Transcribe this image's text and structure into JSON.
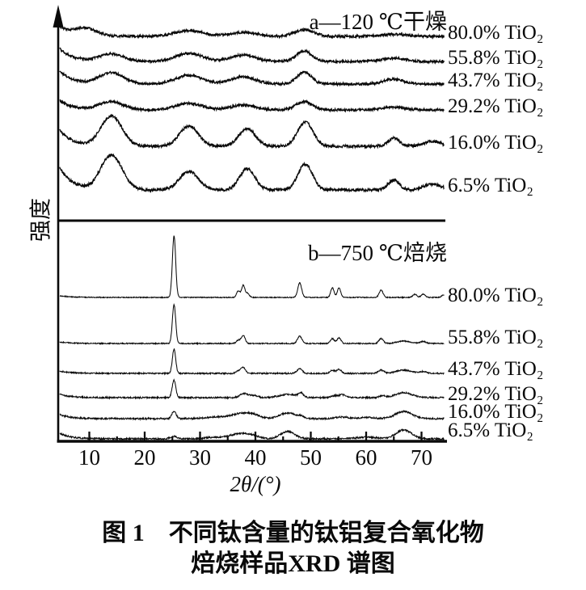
{
  "figure": {
    "caption_line1": "图 1　不同钛含量的钛铝复合氧化物",
    "caption_line2": "焙烧样品XRD 谱图"
  },
  "chart_data": {
    "type": "line",
    "title": "不同钛含量的钛铝复合氧化物焙烧样品XRD谱图",
    "xlabel": "2θ/(°)",
    "ylabel": "强度",
    "x_range": [
      4.65,
      74.1
    ],
    "x_ticks": [
      10,
      20,
      30,
      40,
      50,
      60,
      70
    ],
    "x_minor_ticks": [
      15,
      25,
      35,
      45,
      55,
      65
    ],
    "grid": false,
    "legend_position": "right-of-each-trace",
    "ink_color": "#0a0a0a",
    "panels": [
      {
        "id": "a",
        "title": "a—120 ℃干燥",
        "series": [
          {
            "label": "80.0% TiO₂",
            "baseline": 45,
            "rise": 12,
            "rise_decay": 2.3,
            "noise": 1.5,
            "peaks": [
              [
                9.4,
                9,
                2.0
              ],
              [
                28,
                7,
                2.6
              ],
              [
                37.8,
                5,
                2.4
              ],
              [
                48.8,
                8,
                1.8
              ],
              [
                65,
                2.5,
                2.5
              ]
            ]
          },
          {
            "label": "55.8% TiO₂",
            "baseline": 76,
            "rise": 16,
            "rise_decay": 2.3,
            "noise": 1.5,
            "peaks": [
              [
                14,
                9,
                2.2
              ],
              [
                28,
                10,
                2.4
              ],
              [
                37.8,
                8,
                2.2
              ],
              [
                48.8,
                13,
                1.4
              ],
              [
                65,
                4,
                2.0
              ]
            ]
          },
          {
            "label": "43.7% TiO₂",
            "baseline": 104,
            "rise": 16,
            "rise_decay": 2.3,
            "noise": 1.5,
            "peaks": [
              [
                14,
                14,
                2.2
              ],
              [
                28,
                11,
                2.4
              ],
              [
                37.8,
                9,
                2.2
              ],
              [
                48.8,
                15,
                1.3
              ],
              [
                65,
                6,
                1.8
              ]
            ]
          },
          {
            "label": "29.2% TiO₂",
            "baseline": 136,
            "rise": 12,
            "rise_decay": 2.3,
            "noise": 1.5,
            "peaks": [
              [
                14,
                10,
                2.2
              ],
              [
                28,
                8,
                2.4
              ],
              [
                37.8,
                6,
                2.2
              ],
              [
                48.8,
                10,
                1.5
              ],
              [
                65,
                3.5,
                2.0
              ]
            ]
          },
          {
            "label": "16.0% TiO₂",
            "baseline": 181,
            "rise": 20,
            "rise_decay": 2.3,
            "noise": 1.7,
            "peaks": [
              [
                14,
                37,
                1.9
              ],
              [
                28,
                25,
                1.7
              ],
              [
                38.5,
                22,
                1.5
              ],
              [
                49,
                30,
                1.4
              ],
              [
                65,
                10,
                1.0
              ],
              [
                72,
                6,
                1.6
              ]
            ]
          },
          {
            "label": "6.5% TiO₂",
            "baseline": 235,
            "rise": 28,
            "rise_decay": 2.2,
            "noise": 1.8,
            "peaks": [
              [
                14,
                43,
                1.9
              ],
              [
                28,
                23,
                1.7
              ],
              [
                38.5,
                26,
                1.4
              ],
              [
                49,
                32,
                1.3
              ],
              [
                65,
                12,
                1.0
              ],
              [
                72,
                7,
                1.6
              ]
            ]
          }
        ]
      },
      {
        "id": "b",
        "title": "b—750 ℃焙烧",
        "series": [
          {
            "label": "80.0% TiO₂",
            "baseline": 368,
            "rise": 2,
            "rise_decay": 2.0,
            "noise": 0.55,
            "peaks": [
              [
                25.3,
                76,
                0.3
              ],
              [
                36.9,
                8,
                0.3
              ],
              [
                37.8,
                15,
                0.3
              ],
              [
                38.6,
                5,
                0.3
              ],
              [
                48.0,
                18,
                0.35
              ],
              [
                53.9,
                12,
                0.3
              ],
              [
                55.1,
                12,
                0.3
              ],
              [
                62.7,
                9,
                0.35
              ],
              [
                68.8,
                4,
                0.35
              ],
              [
                70.3,
                4,
                0.35
              ],
              [
                74.0,
                3,
                0.35
              ]
            ]
          },
          {
            "label": "55.8% TiO₂",
            "baseline": 425,
            "rise": 2,
            "rise_decay": 2.0,
            "noise": 0.65,
            "peaks": [
              [
                25.3,
                48,
                0.3
              ],
              [
                36.9,
                4,
                0.35
              ],
              [
                37.8,
                10,
                0.35
              ],
              [
                48.0,
                9,
                0.4
              ],
              [
                53.9,
                6,
                0.35
              ],
              [
                55.1,
                7,
                0.35
              ],
              [
                62.7,
                6,
                0.4
              ],
              [
                66.8,
                3,
                1.2
              ],
              [
                70.3,
                2.5,
                0.5
              ]
            ]
          },
          {
            "label": "43.7% TiO₂",
            "baseline": 462,
            "rise": 3,
            "rise_decay": 2.0,
            "noise": 0.8,
            "peaks": [
              [
                25.3,
                30,
                0.3
              ],
              [
                36.9,
                3,
                0.4
              ],
              [
                37.8,
                7,
                0.4
              ],
              [
                48.0,
                6,
                0.45
              ],
              [
                53.9,
                4,
                0.4
              ],
              [
                55.1,
                5,
                0.4
              ],
              [
                62.7,
                4,
                0.5
              ],
              [
                66.8,
                4,
                1.4
              ],
              [
                70.3,
                2,
                0.6
              ]
            ]
          },
          {
            "label": "29.2% TiO₂",
            "baseline": 492,
            "rise": 4,
            "rise_decay": 2.0,
            "noise": 0.95,
            "peaks": [
              [
                25.3,
                22,
                0.32
              ],
              [
                37.8,
                5,
                0.6
              ],
              [
                39.5,
                3,
                0.8
              ],
              [
                46,
                4,
                1.6
              ],
              [
                48.2,
                5,
                0.4
              ],
              [
                54.5,
                2.5,
                0.8
              ],
              [
                55.8,
                3,
                0.5
              ],
              [
                62.9,
                2.5,
                0.5
              ],
              [
                66.8,
                6,
                1.5
              ]
            ]
          },
          {
            "label": "16.0% TiO₂",
            "baseline": 518,
            "rise": 5,
            "rise_decay": 2.0,
            "noise": 1.0,
            "peaks": [
              [
                25.3,
                9,
                0.4
              ],
              [
                33,
                2,
                2.0
              ],
              [
                37.3,
                6,
                1.6
              ],
              [
                39.6,
                4,
                1.2
              ],
              [
                45.8,
                7,
                1.5
              ],
              [
                48.2,
                2,
                0.6
              ],
              [
                55.5,
                2,
                1.2
              ],
              [
                60,
                1.5,
                1.5
              ],
              [
                66.8,
                9,
                1.5
              ]
            ]
          },
          {
            "label": "6.5% TiO₂",
            "baseline": 543,
            "rise": 7,
            "rise_decay": 2.0,
            "noise": 1.0,
            "peaks": [
              [
                25.3,
                3,
                0.6
              ],
              [
                33,
                2,
                2.0
              ],
              [
                37.2,
                6,
                1.6
              ],
              [
                39.6,
                3,
                1.2
              ],
              [
                45.8,
                9,
                1.3
              ],
              [
                60,
                2,
                2.0
              ],
              [
                66.8,
                11,
                1.4
              ]
            ]
          }
        ]
      }
    ]
  }
}
